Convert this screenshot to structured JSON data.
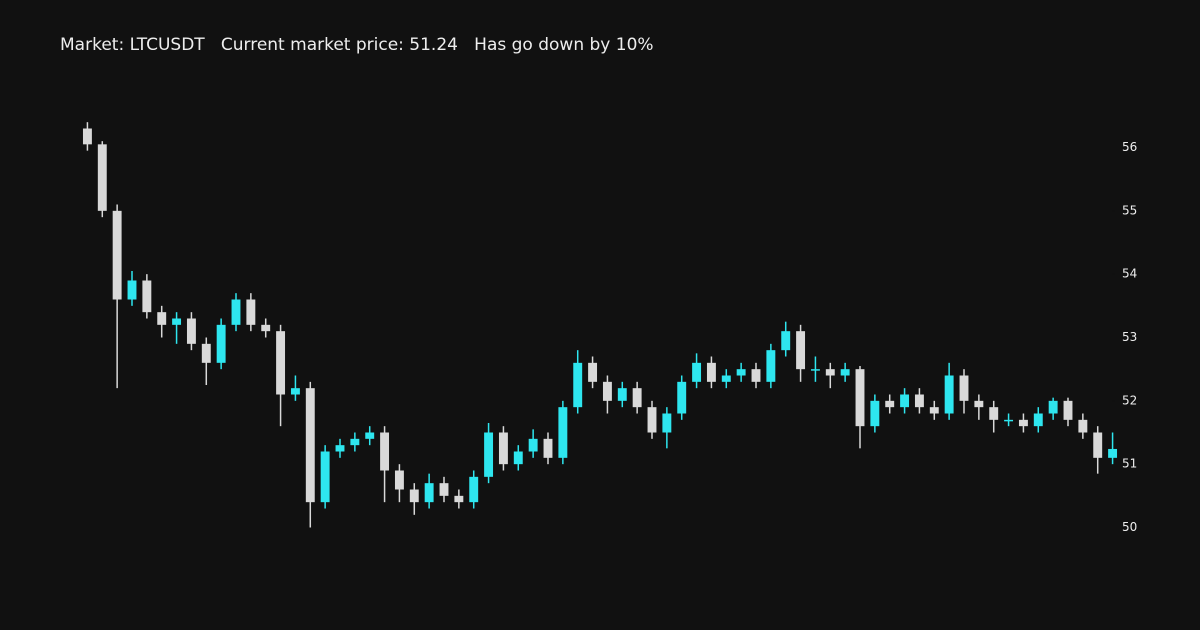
{
  "chart_data": {
    "type": "candlestick",
    "title": "Market: LTCUSDT   Current market price: 51.24   Has go down by 10%",
    "open": [
      56.3,
      56.05,
      55.0,
      53.6,
      53.9,
      53.4,
      53.2,
      53.3,
      52.9,
      52.6,
      53.2,
      53.6,
      53.2,
      53.1,
      52.1,
      52.2,
      50.4,
      51.2,
      51.3,
      51.4,
      51.5,
      50.9,
      50.6,
      50.4,
      50.7,
      50.5,
      50.4,
      50.8,
      51.5,
      51.0,
      51.2,
      51.4,
      51.1,
      51.9,
      52.6,
      52.3,
      52.0,
      52.2,
      51.9,
      51.5,
      51.8,
      52.3,
      52.6,
      52.3,
      52.4,
      52.5,
      52.3,
      52.8,
      53.1,
      52.5,
      52.5,
      52.4,
      52.5,
      51.6,
      52.0,
      51.9,
      52.1,
      51.9,
      51.8,
      52.4,
      52.0,
      51.9,
      51.7,
      51.7,
      51.6,
      51.8,
      52.0,
      51.7,
      51.5,
      51.1
    ],
    "high": [
      56.4,
      56.1,
      55.1,
      54.05,
      54.0,
      53.5,
      53.4,
      53.4,
      53.0,
      53.3,
      53.7,
      53.7,
      53.3,
      53.2,
      52.4,
      52.3,
      51.3,
      51.4,
      51.5,
      51.6,
      51.6,
      51.0,
      50.7,
      50.85,
      50.8,
      50.6,
      50.9,
      51.65,
      51.6,
      51.3,
      51.55,
      51.5,
      52.0,
      52.8,
      52.7,
      52.4,
      52.3,
      52.3,
      52.0,
      51.9,
      52.4,
      52.75,
      52.7,
      52.5,
      52.6,
      52.6,
      52.9,
      53.25,
      53.2,
      52.7,
      52.6,
      52.6,
      52.55,
      52.1,
      52.1,
      52.2,
      52.2,
      52.0,
      52.6,
      52.5,
      52.1,
      52.0,
      51.8,
      51.8,
      51.9,
      52.05,
      52.05,
      51.8,
      51.6,
      51.5
    ],
    "low": [
      55.95,
      54.9,
      52.2,
      53.5,
      53.3,
      53.0,
      52.9,
      52.8,
      52.25,
      52.5,
      53.1,
      53.1,
      53.0,
      51.6,
      52.0,
      50.0,
      50.3,
      51.1,
      51.2,
      51.3,
      50.4,
      50.4,
      50.2,
      50.3,
      50.4,
      50.3,
      50.3,
      50.7,
      50.9,
      50.9,
      51.1,
      51.0,
      51.0,
      51.8,
      52.2,
      51.8,
      51.9,
      51.8,
      51.4,
      51.25,
      51.7,
      52.2,
      52.2,
      52.2,
      52.3,
      52.2,
      52.2,
      52.7,
      52.3,
      52.3,
      52.2,
      52.3,
      51.25,
      51.5,
      51.8,
      51.8,
      51.8,
      51.7,
      51.7,
      51.8,
      51.7,
      51.5,
      51.6,
      51.5,
      51.5,
      51.7,
      51.6,
      51.4,
      50.85,
      51.0
    ],
    "close": [
      56.05,
      55.0,
      53.6,
      53.9,
      53.4,
      53.2,
      53.3,
      52.9,
      52.6,
      53.2,
      53.6,
      53.2,
      53.1,
      52.1,
      52.2,
      50.4,
      51.2,
      51.3,
      51.4,
      51.5,
      50.9,
      50.6,
      50.4,
      50.7,
      50.5,
      50.4,
      50.8,
      51.5,
      51.0,
      51.2,
      51.4,
      51.1,
      51.9,
      52.6,
      52.3,
      52.0,
      52.2,
      51.9,
      51.5,
      51.8,
      52.3,
      52.6,
      52.3,
      52.4,
      52.5,
      52.3,
      52.8,
      53.1,
      52.5,
      52.5,
      52.4,
      52.5,
      51.6,
      52.0,
      51.9,
      52.1,
      51.9,
      51.8,
      52.4,
      52.0,
      51.9,
      51.7,
      51.7,
      51.6,
      51.8,
      52.0,
      51.7,
      51.5,
      51.1,
      51.24
    ],
    "up_color": "#2ee6ef",
    "down_color": "#d9d9d9",
    "ylim": [
      49.25,
      56.75
    ],
    "yticks": [
      50,
      51,
      52,
      53,
      54,
      55,
      56
    ]
  }
}
